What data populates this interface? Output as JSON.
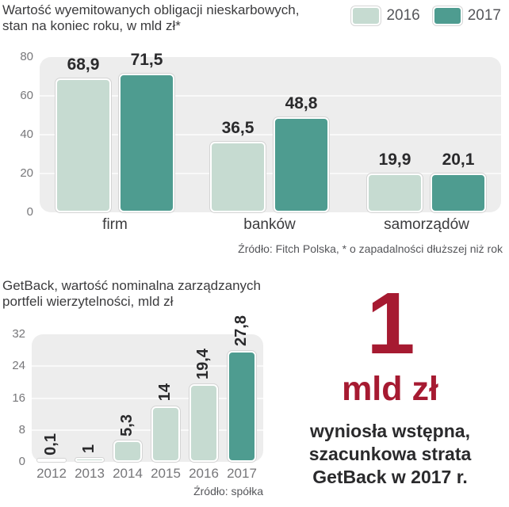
{
  "colors": {
    "series_2016": "#c6dbd1",
    "series_2017": "#4e9c90",
    "accent_red": "#a61a31",
    "plot_bg": "#ededed",
    "grid": "#f9f9f9",
    "title_text": "#3b3b3d",
    "tick_text": "#77777a",
    "value_text": "#2a2a2c",
    "source_text": "#55565a"
  },
  "top_chart": {
    "title_line1": "Wartość wyemitowanych obligacji nieskarbowych,",
    "title_line2": "stan na koniec roku, w mld zł*",
    "source": "Źródło: Fitch Polska, * o zapadalności dłuższej niż rok"
  },
  "bottom_chart": {
    "title_line1": "GetBack, wartość nominalna zarządzanych",
    "title_line2": "portfeli wierzytelności, mld zł",
    "source": "Źródło: spółka"
  },
  "callout": {
    "value": "1",
    "unit": "mld zł",
    "line1": "wyniosła wstępna,",
    "line2": "szacunkowa strata",
    "line3": "GetBack w 2017 r."
  },
  "chart_data": [
    {
      "type": "bar",
      "title": "Wartość wyemitowanych obligacji nieskarbowych, stan na koniec roku, w mld zł*",
      "categories": [
        "firm",
        "banków",
        "samorządów"
      ],
      "series": [
        {
          "name": "2016",
          "values": [
            68.9,
            36.5,
            19.9
          ],
          "labels": [
            "68,9",
            "36,5",
            "19,9"
          ]
        },
        {
          "name": "2017",
          "values": [
            71.5,
            48.8,
            20.1
          ],
          "labels": [
            "71,5",
            "48,8",
            "20,1"
          ]
        }
      ],
      "ylim": [
        0,
        80
      ],
      "yticks": [
        0,
        20,
        40,
        60,
        80
      ],
      "grid": true,
      "legend_position": "top-right",
      "source": "Źródło: Fitch Polska, * o zapadalności dłuższej niż rok"
    },
    {
      "type": "bar",
      "title": "GetBack, wartość nominalna zarządzanych portfeli wierzytelności, mld zł",
      "categories": [
        "2012",
        "2013",
        "2014",
        "2015",
        "2016",
        "2017"
      ],
      "values": [
        0.1,
        1,
        5.3,
        14,
        19.4,
        27.8
      ],
      "value_labels": [
        "0,1",
        "1",
        "5,3",
        "14",
        "19,4",
        "27,8"
      ],
      "highlight_category": "2017",
      "ylim": [
        0,
        32
      ],
      "yticks": [
        0,
        8,
        16,
        24,
        32
      ],
      "grid": true,
      "source": "Źródło: spółka"
    }
  ]
}
